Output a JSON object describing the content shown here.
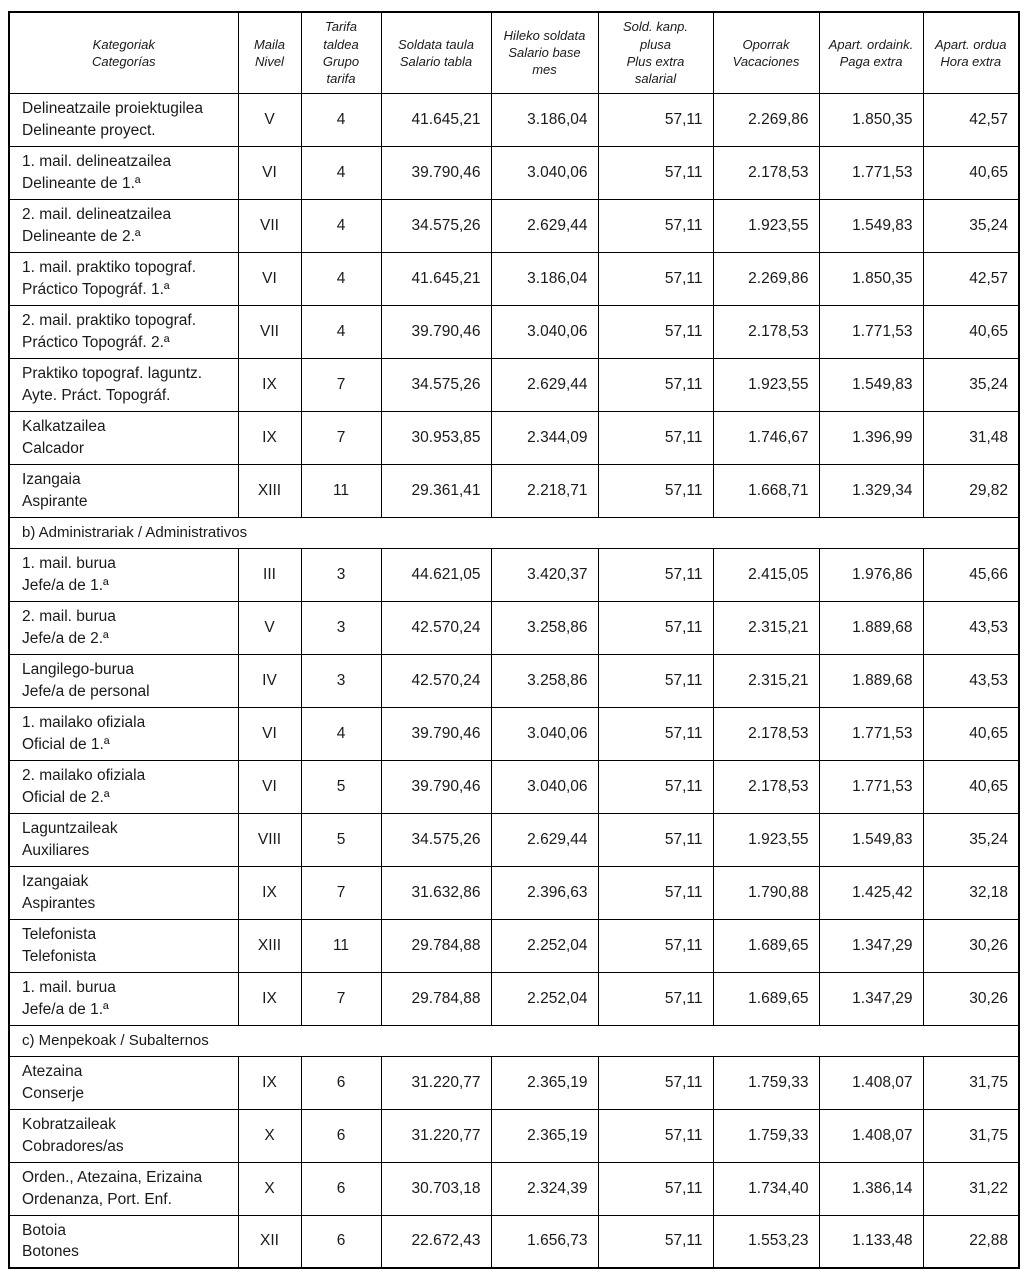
{
  "table": {
    "columns": [
      [
        "Kategoriak",
        "Categorías"
      ],
      [
        "Maila",
        "Nivel"
      ],
      [
        "Tarifa",
        "taldea",
        "Grupo",
        "tarifa"
      ],
      [
        "Soldata taula",
        "Salario tabla"
      ],
      [
        "Hileko soldata",
        "Salario base",
        "mes"
      ],
      [
        "Sold. kanp.",
        "plusa",
        "Plus extra",
        "salarial"
      ],
      [
        "Oporrak",
        "Vacaciones"
      ],
      [
        "Apart. ordaink.",
        "Paga extra"
      ],
      [
        "Apart. ordua",
        "Hora extra"
      ]
    ],
    "rows": [
      {
        "category": [
          "Delineatzaile proiektugilea",
          "Delineante proyect."
        ],
        "nivel": "V",
        "grupo": "4",
        "values": [
          "41.645,21",
          "3.186,04",
          "57,11",
          "2.269,86",
          "1.850,35",
          "42,57"
        ]
      },
      {
        "category": [
          "1. mail. delineatzailea",
          "Delineante de 1.ª"
        ],
        "nivel": "VI",
        "grupo": "4",
        "values": [
          "39.790,46",
          "3.040,06",
          "57,11",
          "2.178,53",
          "1.771,53",
          "40,65"
        ]
      },
      {
        "category": [
          "2. mail. delineatzailea",
          "Delineante de 2.ª"
        ],
        "nivel": "VII",
        "grupo": "4",
        "values": [
          "34.575,26",
          "2.629,44",
          "57,11",
          "1.923,55",
          "1.549,83",
          "35,24"
        ]
      },
      {
        "category": [
          "1. mail. praktiko topograf.",
          "Práctico Topográf. 1.ª"
        ],
        "nivel": "VI",
        "grupo": "4",
        "values": [
          "41.645,21",
          "3.186,04",
          "57,11",
          "2.269,86",
          "1.850,35",
          "42,57"
        ]
      },
      {
        "category": [
          "2. mail. praktiko topograf.",
          "Práctico Topográf. 2.ª"
        ],
        "nivel": "VII",
        "grupo": "4",
        "values": [
          "39.790,46",
          "3.040,06",
          "57,11",
          "2.178,53",
          "1.771,53",
          "40,65"
        ]
      },
      {
        "category": [
          "Praktiko topograf. laguntz.",
          "Ayte. Práct. Topográf."
        ],
        "nivel": "IX",
        "grupo": "7",
        "values": [
          "34.575,26",
          "2.629,44",
          "57,11",
          "1.923,55",
          "1.549,83",
          "35,24"
        ]
      },
      {
        "category": [
          "Kalkatzailea",
          "Calcador"
        ],
        "nivel": "IX",
        "grupo": "7",
        "values": [
          "30.953,85",
          "2.344,09",
          "57,11",
          "1.746,67",
          "1.396,99",
          "31,48"
        ]
      },
      {
        "category": [
          "Izangaia",
          "Aspirante"
        ],
        "nivel": "XIII",
        "grupo": "11",
        "values": [
          "29.361,41",
          "2.218,71",
          "57,11",
          "1.668,71",
          "1.329,34",
          "29,82"
        ]
      },
      {
        "section": "b) Administrariak / Administrativos"
      },
      {
        "category": [
          "1. mail. burua",
          "Jefe/a de 1.ª"
        ],
        "nivel": "III",
        "grupo": "3",
        "values": [
          "44.621,05",
          "3.420,37",
          "57,11",
          "2.415,05",
          "1.976,86",
          "45,66"
        ]
      },
      {
        "category": [
          "2. mail. burua",
          "Jefe/a de 2.ª"
        ],
        "nivel": "V",
        "grupo": "3",
        "values": [
          "42.570,24",
          "3.258,86",
          "57,11",
          "2.315,21",
          "1.889,68",
          "43,53"
        ]
      },
      {
        "category": [
          "Langilego-burua",
          "Jefe/a de personal"
        ],
        "nivel": "IV",
        "grupo": "3",
        "values": [
          "42.570,24",
          "3.258,86",
          "57,11",
          "2.315,21",
          "1.889,68",
          "43,53"
        ]
      },
      {
        "category": [
          "1. mailako ofiziala",
          "Oficial de 1.ª"
        ],
        "nivel": "VI",
        "grupo": "4",
        "values": [
          "39.790,46",
          "3.040,06",
          "57,11",
          "2.178,53",
          "1.771,53",
          "40,65"
        ]
      },
      {
        "category": [
          "2. mailako ofiziala",
          "Oficial de 2.ª"
        ],
        "nivel": "VI",
        "grupo": "5",
        "values": [
          "39.790,46",
          "3.040,06",
          "57,11",
          "2.178,53",
          "1.771,53",
          "40,65"
        ]
      },
      {
        "category": [
          "Laguntzaileak",
          "Auxiliares"
        ],
        "nivel": "VIII",
        "grupo": "5",
        "values": [
          "34.575,26",
          "2.629,44",
          "57,11",
          "1.923,55",
          "1.549,83",
          "35,24"
        ]
      },
      {
        "category": [
          "Izangaiak",
          "Aspirantes"
        ],
        "nivel": "IX",
        "grupo": "7",
        "values": [
          "31.632,86",
          "2.396,63",
          "57,11",
          "1.790,88",
          "1.425,42",
          "32,18"
        ]
      },
      {
        "category": [
          "Telefonista",
          "Telefonista"
        ],
        "nivel": "XIII",
        "grupo": "11",
        "values": [
          "29.784,88",
          "2.252,04",
          "57,11",
          "1.689,65",
          "1.347,29",
          "30,26"
        ]
      },
      {
        "category": [
          "1. mail. burua",
          "Jefe/a de 1.ª"
        ],
        "nivel": "IX",
        "grupo": "7",
        "values": [
          "29.784,88",
          "2.252,04",
          "57,11",
          "1.689,65",
          "1.347,29",
          "30,26"
        ]
      },
      {
        "section": "c) Menpekoak / Subalternos"
      },
      {
        "category": [
          "Atezaina",
          "Conserje"
        ],
        "nivel": "IX",
        "grupo": "6",
        "values": [
          "31.220,77",
          "2.365,19",
          "57,11",
          "1.759,33",
          "1.408,07",
          "31,75"
        ]
      },
      {
        "category": [
          "Kobratzaileak",
          "Cobradores/as"
        ],
        "nivel": "X",
        "grupo": "6",
        "values": [
          "31.220,77",
          "2.365,19",
          "57,11",
          "1.759,33",
          "1.408,07",
          "31,75"
        ]
      },
      {
        "category": [
          "Orden., Atezaina, Erizaina",
          "Ordenanza, Port. Enf."
        ],
        "nivel": "X",
        "grupo": "6",
        "values": [
          "30.703,18",
          "2.324,39",
          "57,11",
          "1.734,40",
          "1.386,14",
          "31,22"
        ]
      },
      {
        "category": [
          "Botoia",
          "Botones"
        ],
        "nivel": "XII",
        "grupo": "6",
        "values": [
          "22.672,43",
          "1.656,73",
          "57,11",
          "1.553,23",
          "1.133,48",
          "22,88"
        ]
      }
    ]
  }
}
